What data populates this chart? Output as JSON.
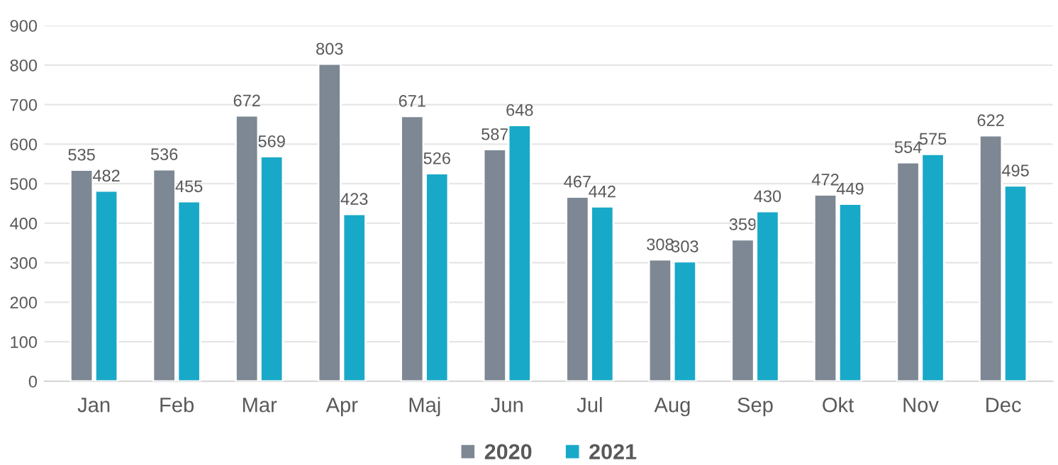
{
  "chart_data": {
    "type": "bar",
    "categories": [
      "Jan",
      "Feb",
      "Mar",
      "Apr",
      "Maj",
      "Jun",
      "Jul",
      "Aug",
      "Sep",
      "Okt",
      "Nov",
      "Dec"
    ],
    "series": [
      {
        "name": "2020",
        "color": "#7d8894",
        "values": [
          535,
          536,
          672,
          803,
          671,
          587,
          467,
          308,
          359,
          472,
          554,
          622
        ]
      },
      {
        "name": "2021",
        "color": "#19a9c8",
        "values": [
          482,
          455,
          569,
          423,
          526,
          648,
          442,
          303,
          430,
          449,
          575,
          495
        ]
      }
    ],
    "ylim": [
      0,
      900
    ],
    "yticks": [
      0,
      100,
      200,
      300,
      400,
      500,
      600,
      700,
      800,
      900
    ],
    "grid": "y",
    "legend": "bottom",
    "data_labels": true
  }
}
